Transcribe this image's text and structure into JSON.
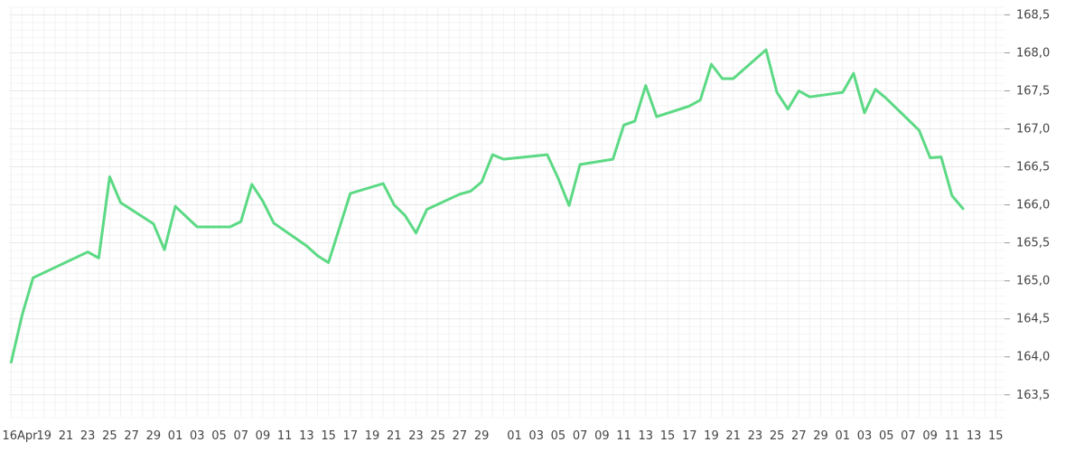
{
  "chart_data": {
    "type": "line",
    "title": "",
    "xlabel": "",
    "ylabel": "",
    "ylim": [
      163.2,
      168.6
    ],
    "y_ticks": [
      "163,5",
      "164,0",
      "164,5",
      "165,0",
      "165,5",
      "166,0",
      "166,5",
      "167,0",
      "167,5",
      "168,0",
      "168,5"
    ],
    "y_tick_values": [
      163.5,
      164.0,
      164.5,
      165.0,
      165.5,
      166.0,
      166.5,
      167.0,
      167.5,
      168.0,
      168.5
    ],
    "x_ticks": [
      {
        "day": 0,
        "label": "16Apr"
      },
      {
        "day": 3,
        "label": "19"
      },
      {
        "day": 5,
        "label": "21"
      },
      {
        "day": 7,
        "label": "23"
      },
      {
        "day": 9,
        "label": "25"
      },
      {
        "day": 11,
        "label": "27"
      },
      {
        "day": 13,
        "label": "29"
      },
      {
        "day": 15,
        "label": "01"
      },
      {
        "day": 17,
        "label": "03"
      },
      {
        "day": 19,
        "label": "05"
      },
      {
        "day": 21,
        "label": "07"
      },
      {
        "day": 23,
        "label": "09"
      },
      {
        "day": 25,
        "label": "11"
      },
      {
        "day": 27,
        "label": "13"
      },
      {
        "day": 29,
        "label": "15"
      },
      {
        "day": 31,
        "label": "17"
      },
      {
        "day": 33,
        "label": "19"
      },
      {
        "day": 35,
        "label": "21"
      },
      {
        "day": 37,
        "label": "23"
      },
      {
        "day": 39,
        "label": "25"
      },
      {
        "day": 41,
        "label": "27"
      },
      {
        "day": 43,
        "label": "29"
      },
      {
        "day": 46,
        "label": "01"
      },
      {
        "day": 48,
        "label": "03"
      },
      {
        "day": 50,
        "label": "05"
      },
      {
        "day": 52,
        "label": "07"
      },
      {
        "day": 54,
        "label": "09"
      },
      {
        "day": 56,
        "label": "11"
      },
      {
        "day": 58,
        "label": "13"
      },
      {
        "day": 60,
        "label": "15"
      },
      {
        "day": 62,
        "label": "17"
      },
      {
        "day": 64,
        "label": "19"
      },
      {
        "day": 66,
        "label": "21"
      },
      {
        "day": 68,
        "label": "23"
      },
      {
        "day": 70,
        "label": "25"
      },
      {
        "day": 72,
        "label": "27"
      },
      {
        "day": 74,
        "label": "29"
      },
      {
        "day": 76,
        "label": "01"
      },
      {
        "day": 78,
        "label": "03"
      },
      {
        "day": 80,
        "label": "05"
      },
      {
        "day": 82,
        "label": "07"
      },
      {
        "day": 84,
        "label": "09"
      },
      {
        "day": 86,
        "label": "11"
      },
      {
        "day": 88,
        "label": "13"
      },
      {
        "day": 90,
        "label": "15"
      }
    ],
    "x_range": [
      -0.2,
      90.8
    ],
    "grid": true,
    "series": [
      {
        "color": "#5cd984",
        "points": [
          [
            0,
            163.93
          ],
          [
            1,
            164.55
          ],
          [
            2,
            165.04
          ],
          [
            7,
            165.38
          ],
          [
            8,
            165.3
          ],
          [
            9,
            166.37
          ],
          [
            10,
            166.03
          ],
          [
            13,
            165.75
          ],
          [
            14,
            165.41
          ],
          [
            15,
            165.98
          ],
          [
            17,
            165.71
          ],
          [
            20,
            165.71
          ],
          [
            21,
            165.78
          ],
          [
            22,
            166.27
          ],
          [
            23,
            166.05
          ],
          [
            24,
            165.76
          ],
          [
            27,
            165.46
          ],
          [
            28,
            165.33
          ],
          [
            29,
            165.24
          ],
          [
            31,
            166.15
          ],
          [
            34,
            166.28
          ],
          [
            35,
            166.0
          ],
          [
            36,
            165.86
          ],
          [
            37,
            165.63
          ],
          [
            38,
            165.94
          ],
          [
            41,
            166.14
          ],
          [
            42,
            166.18
          ],
          [
            43,
            166.3
          ],
          [
            44,
            166.66
          ],
          [
            45,
            166.6
          ],
          [
            49,
            166.66
          ],
          [
            50,
            166.35
          ],
          [
            51,
            165.99
          ],
          [
            52,
            166.53
          ],
          [
            55,
            166.6
          ],
          [
            56,
            167.05
          ],
          [
            57,
            167.1
          ],
          [
            58,
            167.57
          ],
          [
            59,
            167.16
          ],
          [
            62,
            167.3
          ],
          [
            63,
            167.38
          ],
          [
            64,
            167.85
          ],
          [
            65,
            167.66
          ],
          [
            66,
            167.66
          ],
          [
            69,
            168.04
          ],
          [
            70,
            167.48
          ],
          [
            71,
            167.26
          ],
          [
            72,
            167.5
          ],
          [
            73,
            167.42
          ],
          [
            76,
            167.48
          ],
          [
            77,
            167.73
          ],
          [
            78,
            167.21
          ],
          [
            79,
            167.52
          ],
          [
            80,
            167.4
          ],
          [
            83,
            166.98
          ],
          [
            84,
            166.62
          ],
          [
            85,
            166.63
          ],
          [
            86,
            166.12
          ],
          [
            87,
            165.95
          ]
        ]
      }
    ]
  }
}
